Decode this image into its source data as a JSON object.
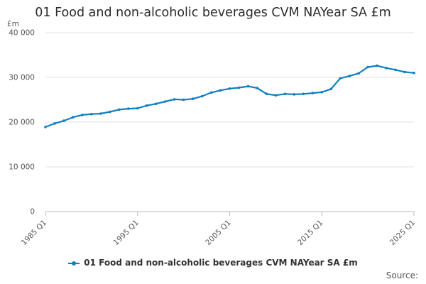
{
  "chart_data": {
    "type": "line",
    "title": "01 Food and non-alcoholic beverages CVM NAYear SA £m",
    "ylabel": "£m",
    "xlabel": "",
    "ylim": [
      0,
      40000
    ],
    "y_ticks": [
      0,
      10000,
      20000,
      30000,
      40000
    ],
    "y_tick_labels": [
      "0",
      "10 000",
      "20 000",
      "30 000",
      "40 000"
    ],
    "x_ticks": [
      "1985 Q1",
      "1995 Q1",
      "2005 Q1",
      "2015 Q1",
      "2025 Q1"
    ],
    "grid": true,
    "legend_position": "bottom",
    "color": "#0f7fc0",
    "series": [
      {
        "name": "01 Food and non-alcoholic beverages CVM NAYear SA £m",
        "x": [
          "1985",
          "1986",
          "1987",
          "1988",
          "1989",
          "1990",
          "1991",
          "1992",
          "1993",
          "1994",
          "1995",
          "1996",
          "1997",
          "1998",
          "1999",
          "2000",
          "2001",
          "2002",
          "2003",
          "2004",
          "2005",
          "2006",
          "2007",
          "2008",
          "2009",
          "2010",
          "2011",
          "2012",
          "2013",
          "2014",
          "2015",
          "2016",
          "2017",
          "2018",
          "2019",
          "2020",
          "2021",
          "2022",
          "2023",
          "2024",
          "2025"
        ],
        "values": [
          18900,
          19700,
          20300,
          21100,
          21600,
          21800,
          21900,
          22300,
          22800,
          23000,
          23100,
          23700,
          24100,
          24600,
          25100,
          25000,
          25200,
          25800,
          26600,
          27100,
          27500,
          27700,
          28000,
          27600,
          26300,
          26000,
          26300,
          26200,
          26300,
          26500,
          26700,
          27400,
          29800,
          30300,
          30900,
          32300,
          32600,
          32100,
          31700,
          31200,
          31000
        ]
      }
    ]
  },
  "legend": {
    "label": "01 Food and non-alcoholic beverages CVM NAYear SA £m"
  },
  "source": {
    "label": "Source:"
  }
}
